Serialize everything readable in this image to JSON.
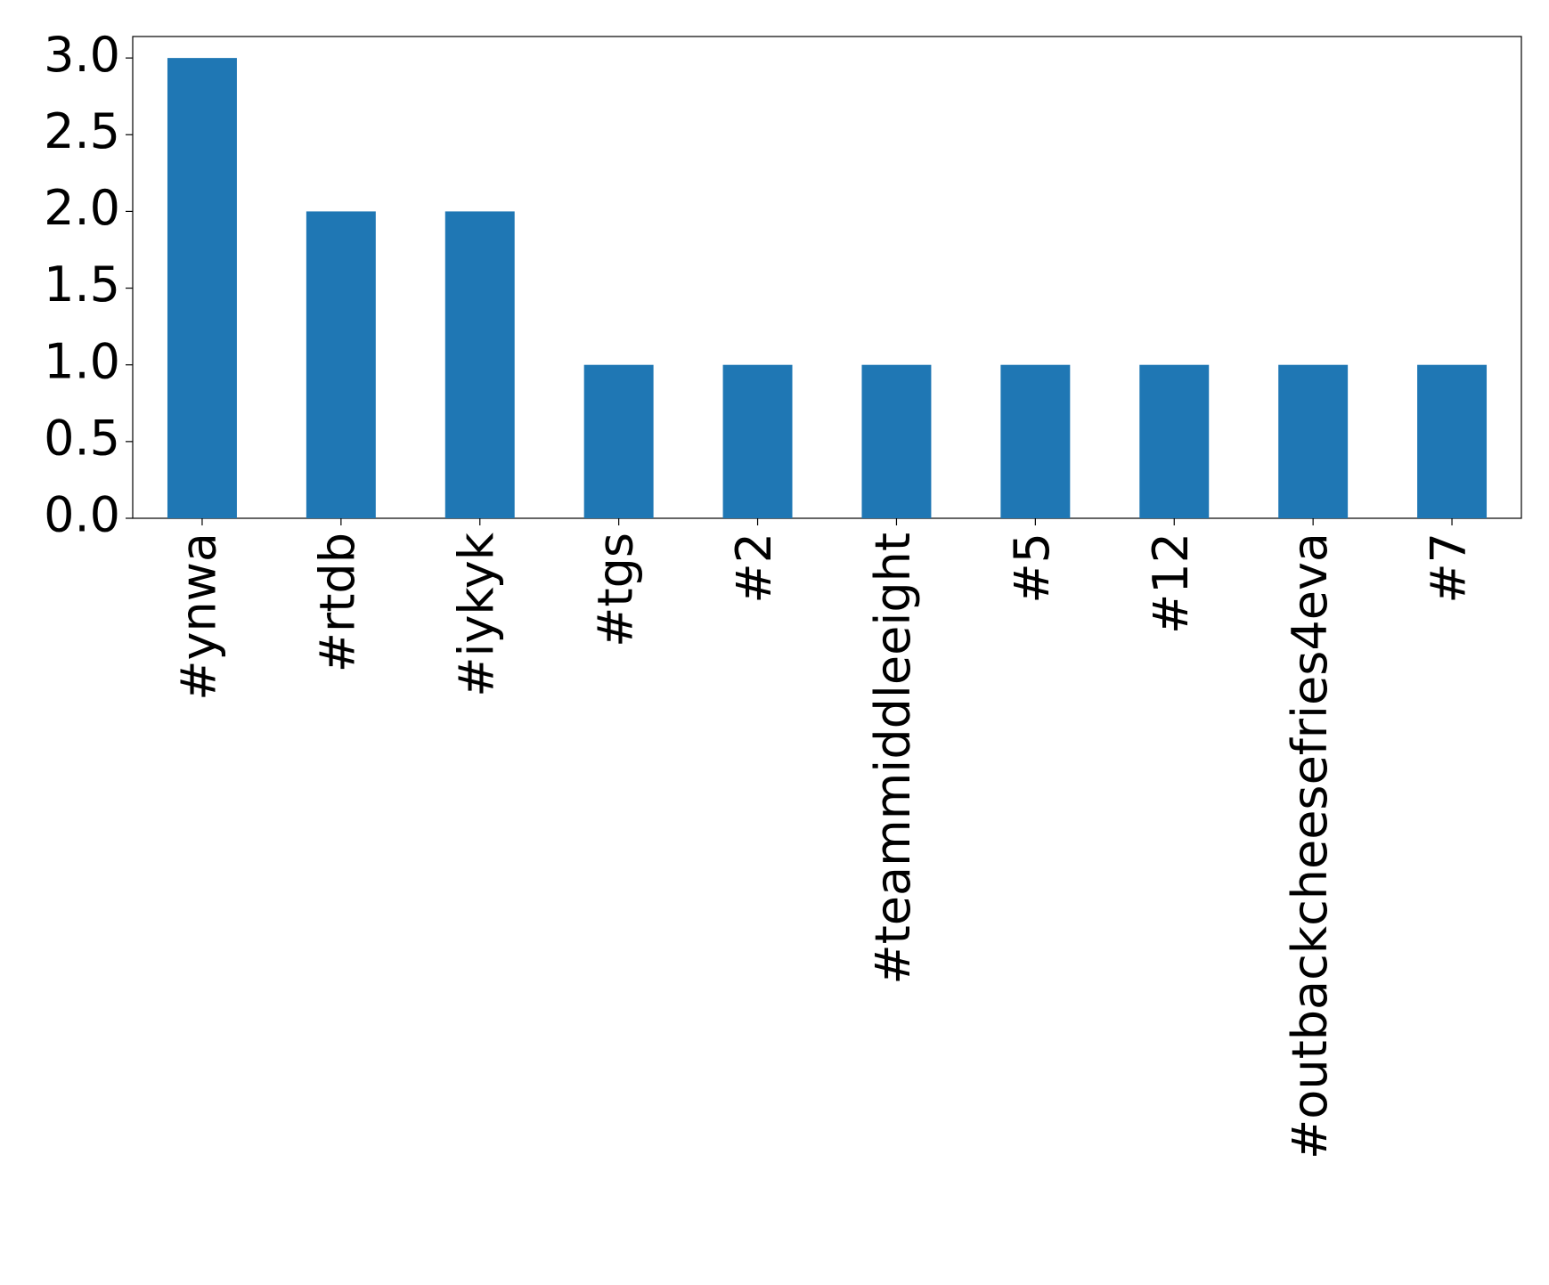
{
  "chart_data": {
    "type": "bar",
    "categories": [
      "#ynwa",
      "#rtdb",
      "#iykyk",
      "#tgs",
      "#2",
      "#teammiddleeight",
      "#5",
      "#12",
      "#outbackcheesefries4eva",
      "#7"
    ],
    "values": [
      3,
      2,
      2,
      1,
      1,
      1,
      1,
      1,
      1,
      1
    ],
    "color": "#1f77b4",
    "ylim": [
      0,
      3.14
    ],
    "yticks": [
      {
        "value": 0,
        "label": "0.0"
      },
      0.5,
      {
        "value": 1,
        "label": "1.0"
      },
      1.5,
      {
        "value": 2,
        "label": "2.0"
      },
      2.5,
      {
        "value": 3,
        "label": "3.0"
      }
    ],
    "grid": false
  }
}
